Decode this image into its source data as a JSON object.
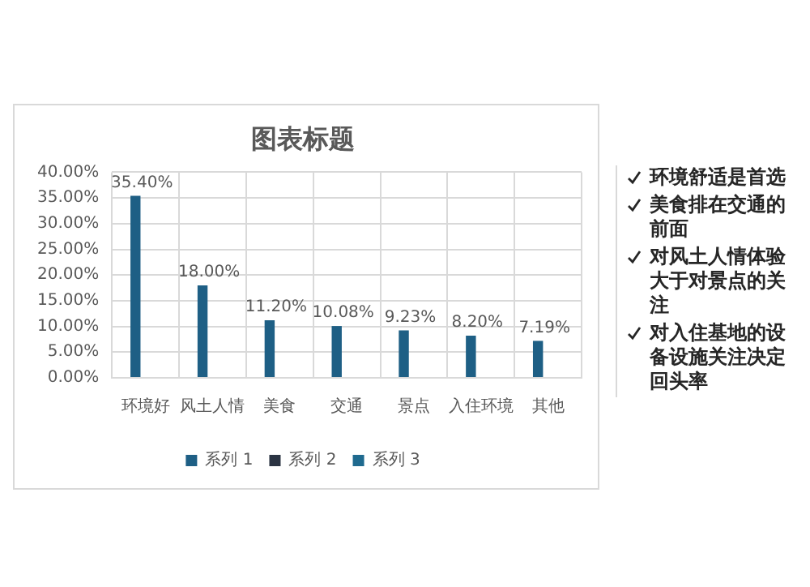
{
  "chart_data": {
    "type": "bar",
    "title": "图表标题",
    "categories": [
      "环境好",
      "风土人情",
      "美食",
      "交通",
      "景点",
      "入住环境",
      "其他"
    ],
    "series": [
      {
        "name": "系列 1",
        "color": "#1e5f85",
        "values": [
          35.4,
          18.0,
          11.2,
          10.08,
          9.23,
          8.2,
          7.19
        ],
        "value_labels": [
          "35.40%",
          "18.00%",
          "11.20%",
          "10.08%",
          "9.23%",
          "8.20%",
          "7.19%"
        ]
      },
      {
        "name": "系列 2",
        "color": "#2b3443",
        "values": [
          null,
          null,
          null,
          null,
          null,
          null,
          null
        ]
      },
      {
        "name": "系列 3",
        "color": "#1f6a8f",
        "values": [
          null,
          null,
          null,
          null,
          null,
          null,
          null
        ]
      }
    ],
    "ylim": [
      0,
      40
    ],
    "yticks": [
      {
        "value": 0,
        "label": "0.00%"
      },
      {
        "value": 5,
        "label": "5.00%"
      },
      {
        "value": 10,
        "label": "10.00%"
      },
      {
        "value": 15,
        "label": "15.00%"
      },
      {
        "value": 20,
        "label": "20.00%"
      },
      {
        "value": 25,
        "label": "25.00%"
      },
      {
        "value": 30,
        "label": "30.00%"
      },
      {
        "value": 35,
        "label": "35.00%"
      },
      {
        "value": 40,
        "label": "40.00%"
      }
    ],
    "grid": true,
    "legend": "bottom",
    "annotations": [
      "环境舒适是首选",
      "美食排在交通的前面",
      "对风土人情体验大于对景点的关注",
      "对入住基地的设备设施关注决定回头率"
    ]
  }
}
